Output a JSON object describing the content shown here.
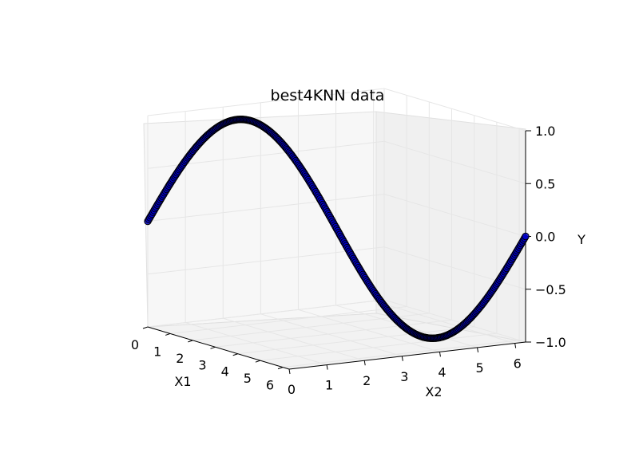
{
  "chart_data": {
    "type": "scatter",
    "projection": "3d",
    "title": "best4KNN data",
    "xlabel": "X1",
    "ylabel": "X2",
    "zlabel": "Y",
    "xlim": [
      0,
      6.2832
    ],
    "ylim": [
      0,
      6.2832
    ],
    "zlim": [
      -1.0,
      1.0
    ],
    "x_ticks": [
      "0",
      "1",
      "2",
      "3",
      "4",
      "5",
      "6"
    ],
    "y_ticks": [
      "0",
      "1",
      "2",
      "3",
      "4",
      "5",
      "6"
    ],
    "z_ticks": [
      "1.0",
      "0.5",
      "0.0",
      "−0.5",
      "−1.0"
    ],
    "grid": true,
    "series": [
      {
        "function": "sin(X2)",
        "x": [
          0,
          0.2,
          0.4,
          0.6,
          0.8,
          1.0,
          1.2,
          1.4,
          1.6,
          1.8,
          2.0,
          2.2,
          2.4,
          2.6,
          2.8,
          3.0,
          3.2,
          3.4,
          3.6,
          3.8,
          4.0,
          4.2,
          4.4,
          4.6,
          4.8,
          5.0,
          5.2,
          5.4,
          5.6,
          5.8,
          6.0,
          6.28
        ],
        "y": [
          0,
          0.2,
          0.4,
          0.6,
          0.8,
          1.0,
          1.2,
          1.4,
          1.6,
          1.8,
          2.0,
          2.2,
          2.4,
          2.6,
          2.8,
          3.0,
          3.2,
          3.4,
          3.6,
          3.8,
          4.0,
          4.2,
          4.4,
          4.6,
          4.8,
          5.0,
          5.2,
          5.4,
          5.6,
          5.8,
          6.0,
          6.28
        ],
        "z": [
          0.0,
          0.199,
          0.389,
          0.565,
          0.717,
          0.841,
          0.932,
          0.985,
          1.0,
          0.974,
          0.909,
          0.808,
          0.675,
          0.516,
          0.335,
          0.141,
          -0.058,
          -0.256,
          -0.443,
          -0.612,
          -0.757,
          -0.872,
          -0.952,
          -0.994,
          -0.996,
          -0.959,
          -0.883,
          -0.773,
          -0.631,
          -0.465,
          -0.279,
          0.0
        ],
        "color": "#0000cc",
        "edgecolor": "#000000"
      }
    ]
  }
}
